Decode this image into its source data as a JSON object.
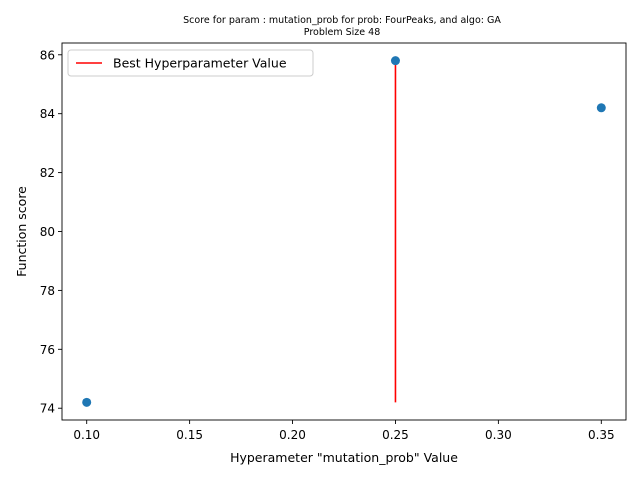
{
  "chart_data": {
    "type": "scatter",
    "title": "Score for param : mutation_prob for prob: FourPeaks, and algo: GA",
    "subtitle": "Problem Size 48",
    "xlabel": "Hyperameter \"mutation_prob\" Value",
    "ylabel": "Function score",
    "xlim": [
      0.088,
      0.362
    ],
    "ylim": [
      73.6,
      86.4
    ],
    "xticks": [
      0.1,
      0.15,
      0.2,
      0.25,
      0.3,
      0.35
    ],
    "xtick_labels": [
      "0.10",
      "0.15",
      "0.20",
      "0.25",
      "0.30",
      "0.35"
    ],
    "yticks": [
      74,
      76,
      78,
      80,
      82,
      84,
      86
    ],
    "ytick_labels": [
      "74",
      "76",
      "78",
      "80",
      "82",
      "84",
      "86"
    ],
    "series": [
      {
        "x": [
          0.1,
          0.25,
          0.35
        ],
        "y": [
          74.2,
          85.8,
          84.2
        ],
        "color": "#1f77b4"
      }
    ],
    "best_line": {
      "name": "Best Hyperparameter Value",
      "x": 0.25,
      "y_from": 74.2,
      "y_to": 85.8,
      "color": "#ff0000"
    },
    "legend": {
      "placement": "upper-left",
      "entries": [
        "Best Hyperparameter Value"
      ]
    },
    "grid": false
  }
}
